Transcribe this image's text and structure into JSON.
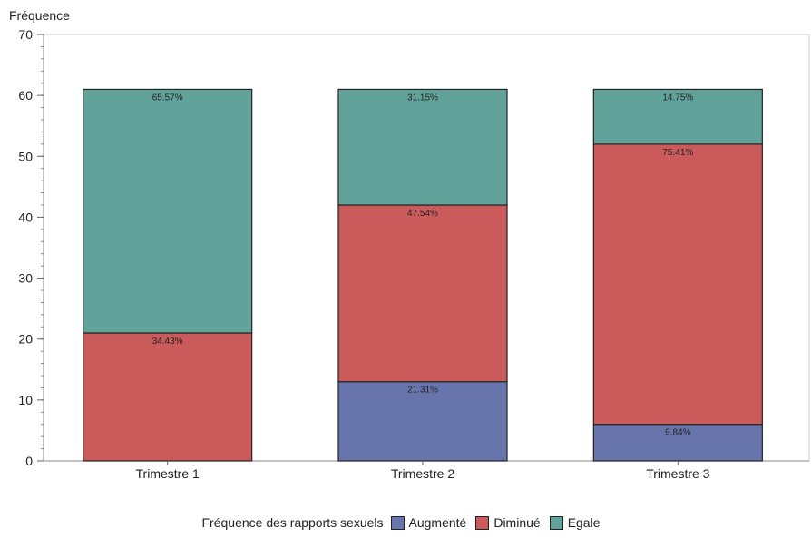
{
  "chart_data": {
    "type": "bar",
    "stacked": true,
    "title": "",
    "ylabel": "Fréquence",
    "xlabel": "",
    "ylim": [
      0,
      70
    ],
    "yticks": [
      0,
      10,
      20,
      30,
      40,
      50,
      60,
      70
    ],
    "categories": [
      "Trimestre 1",
      "Trimestre 2",
      "Trimestre 3"
    ],
    "series": [
      {
        "name": "Augmenté",
        "color": "#6875ad",
        "values": [
          0,
          13,
          6
        ],
        "labels": [
          "",
          "21.31%",
          "9.84%"
        ]
      },
      {
        "name": "Diminué",
        "color": "#cb5a5a",
        "values": [
          21,
          29,
          46
        ],
        "labels": [
          "34.43%",
          "47.54%",
          "75.41%"
        ]
      },
      {
        "name": "Egale",
        "color": "#61a39b",
        "values": [
          40,
          19,
          9
        ],
        "labels": [
          "65.57%",
          "31.15%",
          "14.75%"
        ]
      }
    ],
    "legend": {
      "title": "Fréquence des rapports sexuels",
      "position": "bottom"
    },
    "grid": false
  }
}
